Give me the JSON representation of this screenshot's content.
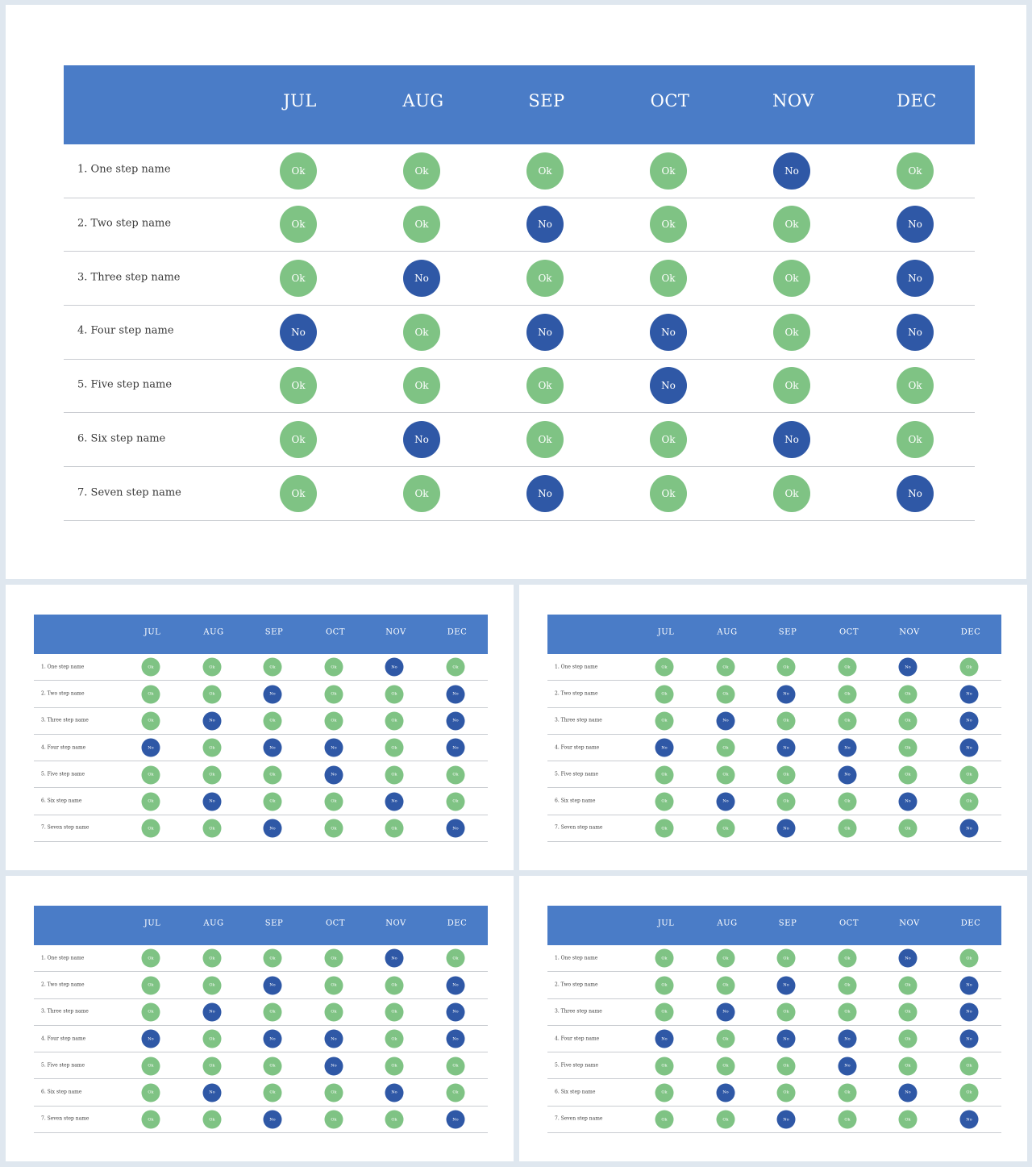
{
  "months": [
    "JUL",
    "AUG",
    "SEP",
    "OCT",
    "NOV",
    "DEC"
  ],
  "rows": [
    {
      "label": "1. One step name",
      "cells": [
        "Ok",
        "Ok",
        "Ok",
        "Ok",
        "No",
        "Ok"
      ]
    },
    {
      "label": "2. Two step name",
      "cells": [
        "Ok",
        "Ok",
        "No",
        "Ok",
        "Ok",
        "No"
      ]
    },
    {
      "label": "3. Three step name",
      "cells": [
        "Ok",
        "No",
        "Ok",
        "Ok",
        "Ok",
        "No"
      ]
    },
    {
      "label": "4. Four step name",
      "cells": [
        "No",
        "Ok",
        "No",
        "No",
        "Ok",
        "No"
      ]
    },
    {
      "label": "5. Five step name",
      "cells": [
        "Ok",
        "Ok",
        "Ok",
        "No",
        "Ok",
        "Ok"
      ]
    },
    {
      "label": "6. Six step name",
      "cells": [
        "Ok",
        "No",
        "Ok",
        "Ok",
        "No",
        "Ok"
      ]
    },
    {
      "label": "7. Seven step name",
      "cells": [
        "Ok",
        "Ok",
        "No",
        "Ok",
        "Ok",
        "No"
      ]
    }
  ],
  "colors": {
    "header": "#4a7cc7",
    "ok": "#7fc384",
    "no": "#2f58a6"
  }
}
